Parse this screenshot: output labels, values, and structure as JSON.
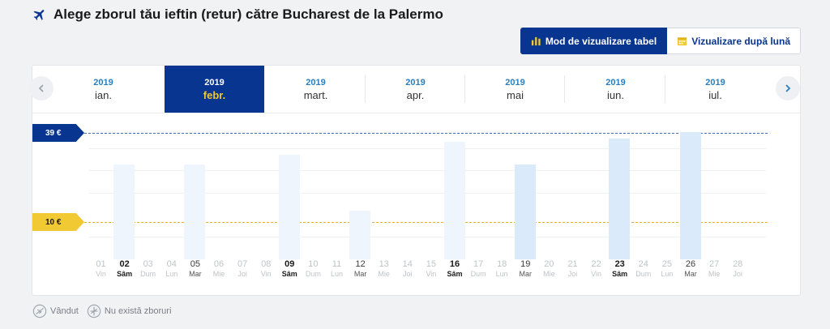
{
  "title": "Alege zborul tău ieftin (retur) către Bucharest de la Palermo",
  "view_toggle": {
    "table_label": "Mod de vizualizare tabel",
    "month_label": "Vizualizare după lună"
  },
  "months": [
    {
      "year": "2019",
      "name": "ian.",
      "selected": false
    },
    {
      "year": "2019",
      "name": "febr.",
      "selected": true
    },
    {
      "year": "2019",
      "name": "mart.",
      "selected": false
    },
    {
      "year": "2019",
      "name": "apr.",
      "selected": false
    },
    {
      "year": "2019",
      "name": "mai",
      "selected": false
    },
    {
      "year": "2019",
      "name": "iun.",
      "selected": false
    },
    {
      "year": "2019",
      "name": "iul.",
      "selected": false
    }
  ],
  "price_levels": {
    "high": "39 €",
    "low": "10 €"
  },
  "days": [
    {
      "d": "01",
      "w": "Vin",
      "state": "none"
    },
    {
      "d": "02",
      "w": "Sâm",
      "state": "avail",
      "price": 29,
      "shade": "faint"
    },
    {
      "d": "03",
      "w": "Dum",
      "state": "none"
    },
    {
      "d": "04",
      "w": "Lun",
      "state": "none"
    },
    {
      "d": "05",
      "w": "Mar",
      "state": "dim",
      "price": 29,
      "shade": "faint"
    },
    {
      "d": "06",
      "w": "Mie",
      "state": "none"
    },
    {
      "d": "07",
      "w": "Joi",
      "state": "none"
    },
    {
      "d": "08",
      "w": "Vin",
      "state": "none"
    },
    {
      "d": "09",
      "w": "Sâm",
      "state": "avail",
      "price": 32,
      "shade": "faint"
    },
    {
      "d": "10",
      "w": "Dum",
      "state": "none"
    },
    {
      "d": "11",
      "w": "Lun",
      "state": "none"
    },
    {
      "d": "12",
      "w": "Mar",
      "state": "dim",
      "price": 15,
      "shade": "faint"
    },
    {
      "d": "13",
      "w": "Mie",
      "state": "none"
    },
    {
      "d": "14",
      "w": "Joi",
      "state": "none"
    },
    {
      "d": "15",
      "w": "Vin",
      "state": "none"
    },
    {
      "d": "16",
      "w": "Sâm",
      "state": "avail",
      "price": 36,
      "shade": "faint"
    },
    {
      "d": "17",
      "w": "Dum",
      "state": "none"
    },
    {
      "d": "18",
      "w": "Lun",
      "state": "none"
    },
    {
      "d": "19",
      "w": "Mar",
      "state": "dim",
      "price": 29,
      "shade": "mid"
    },
    {
      "d": "20",
      "w": "Mie",
      "state": "none"
    },
    {
      "d": "21",
      "w": "Joi",
      "state": "none"
    },
    {
      "d": "22",
      "w": "Vin",
      "state": "none"
    },
    {
      "d": "23",
      "w": "Sâm",
      "state": "avail",
      "price": 37,
      "shade": "mid"
    },
    {
      "d": "24",
      "w": "Dum",
      "state": "none"
    },
    {
      "d": "25",
      "w": "Lun",
      "state": "none"
    },
    {
      "d": "26",
      "w": "Mar",
      "state": "dim",
      "price": 39,
      "shade": "mid"
    },
    {
      "d": "27",
      "w": "Mie",
      "state": "none"
    },
    {
      "d": "28",
      "w": "Joi",
      "state": "none"
    }
  ],
  "legend": {
    "sold_out": "Vândut",
    "no_flights": "Nu există zboruri"
  },
  "colors": {
    "brand": "#073590",
    "accent": "#f1c933"
  }
}
